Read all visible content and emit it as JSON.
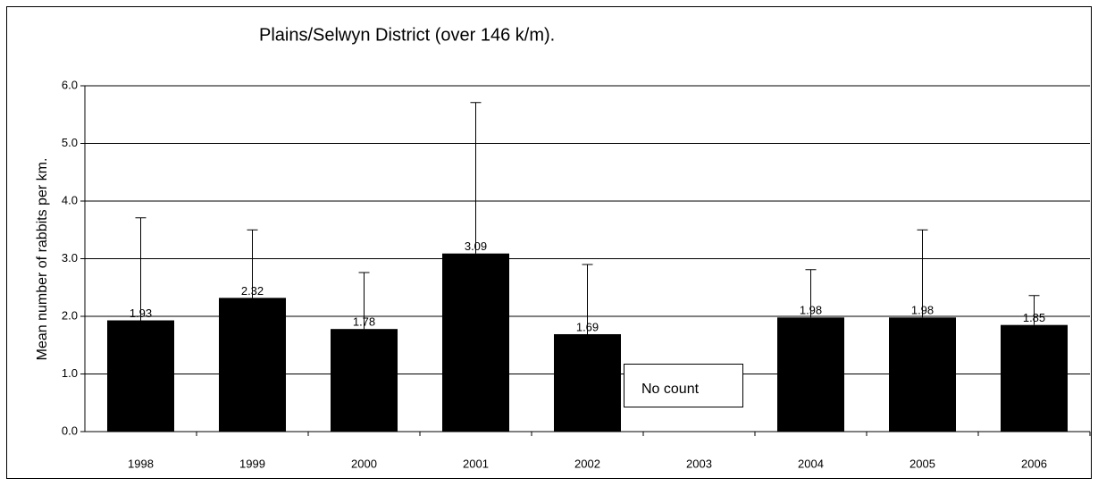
{
  "chart_data": {
    "type": "bar",
    "title": "Plains/Selwyn District (over 146 k/m).",
    "y_label": "Mean number of rabbits per km.",
    "annotation": "No count",
    "categories": [
      "1998",
      "1999",
      "2000",
      "2001",
      "2002",
      "2003",
      "2004",
      "2005",
      "2006"
    ],
    "values": [
      1.93,
      2.32,
      1.78,
      3.09,
      1.69,
      null,
      1.98,
      1.98,
      1.85
    ],
    "errors": [
      1.78,
      1.18,
      0.98,
      2.62,
      1.21,
      null,
      0.83,
      1.52,
      0.51
    ],
    "color": "#000000",
    "ylim": [
      0,
      6
    ],
    "yticks": [
      {
        "value": 0,
        "label": "0.0"
      },
      {
        "value": 1,
        "label": "1.0"
      },
      {
        "value": 2,
        "label": "2.0"
      },
      {
        "value": 3,
        "label": "3.0"
      },
      {
        "value": 4,
        "label": "4.0"
      },
      {
        "value": 5,
        "label": "5.0"
      },
      {
        "value": 6,
        "label": "6.0"
      }
    ],
    "grid": true
  }
}
